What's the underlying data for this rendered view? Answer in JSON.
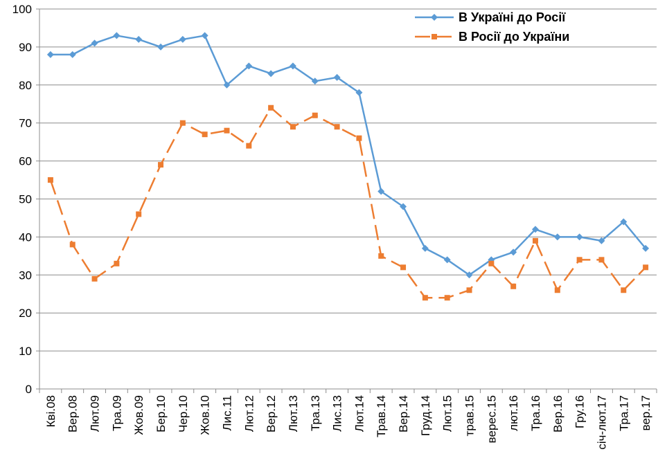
{
  "chart_data": {
    "type": "line",
    "title": "",
    "xlabel": "",
    "ylabel": "",
    "ylim": [
      0,
      100
    ],
    "yticks": [
      0,
      10,
      20,
      30,
      40,
      50,
      60,
      70,
      80,
      90,
      100
    ],
    "grid": true,
    "legend_position": "top-right",
    "categories": [
      "Кві.08",
      "Вер.08",
      "Лют.09",
      "Тра.09",
      "Жов.09",
      "Бер.10",
      "Чер.10",
      "Жов.10",
      "Лис.11",
      "Лют.12",
      "Вер.12",
      "Лют.13",
      "Тра.13",
      "Лис.13",
      "Лют.14",
      "Трав.14",
      "Вер.14",
      "Груд.14",
      "Лют.15",
      "трав.15",
      "верес.15",
      "лют.16",
      "Тра.16",
      "Вер.16",
      "Гру.16",
      "січ-лют.17",
      "Тра.17",
      "вер.17"
    ],
    "series": [
      {
        "name": "В Україні до Росії",
        "color": "#5B9BD5",
        "marker": "diamond",
        "dash": "solid",
        "values": [
          88,
          88,
          91,
          93,
          92,
          90,
          92,
          93,
          80,
          85,
          83,
          85,
          81,
          82,
          78,
          52,
          48,
          37,
          34,
          30,
          34,
          36,
          42,
          40,
          40,
          39,
          44,
          37
        ]
      },
      {
        "name": "В Росії до України",
        "color": "#ED7D31",
        "marker": "square",
        "dash": "dashed",
        "values": [
          55,
          38,
          29,
          33,
          46,
          59,
          70,
          67,
          68,
          64,
          74,
          69,
          72,
          69,
          66,
          35,
          32,
          24,
          24,
          26,
          33,
          27,
          39,
          26,
          34,
          34,
          26,
          32
        ]
      }
    ]
  }
}
